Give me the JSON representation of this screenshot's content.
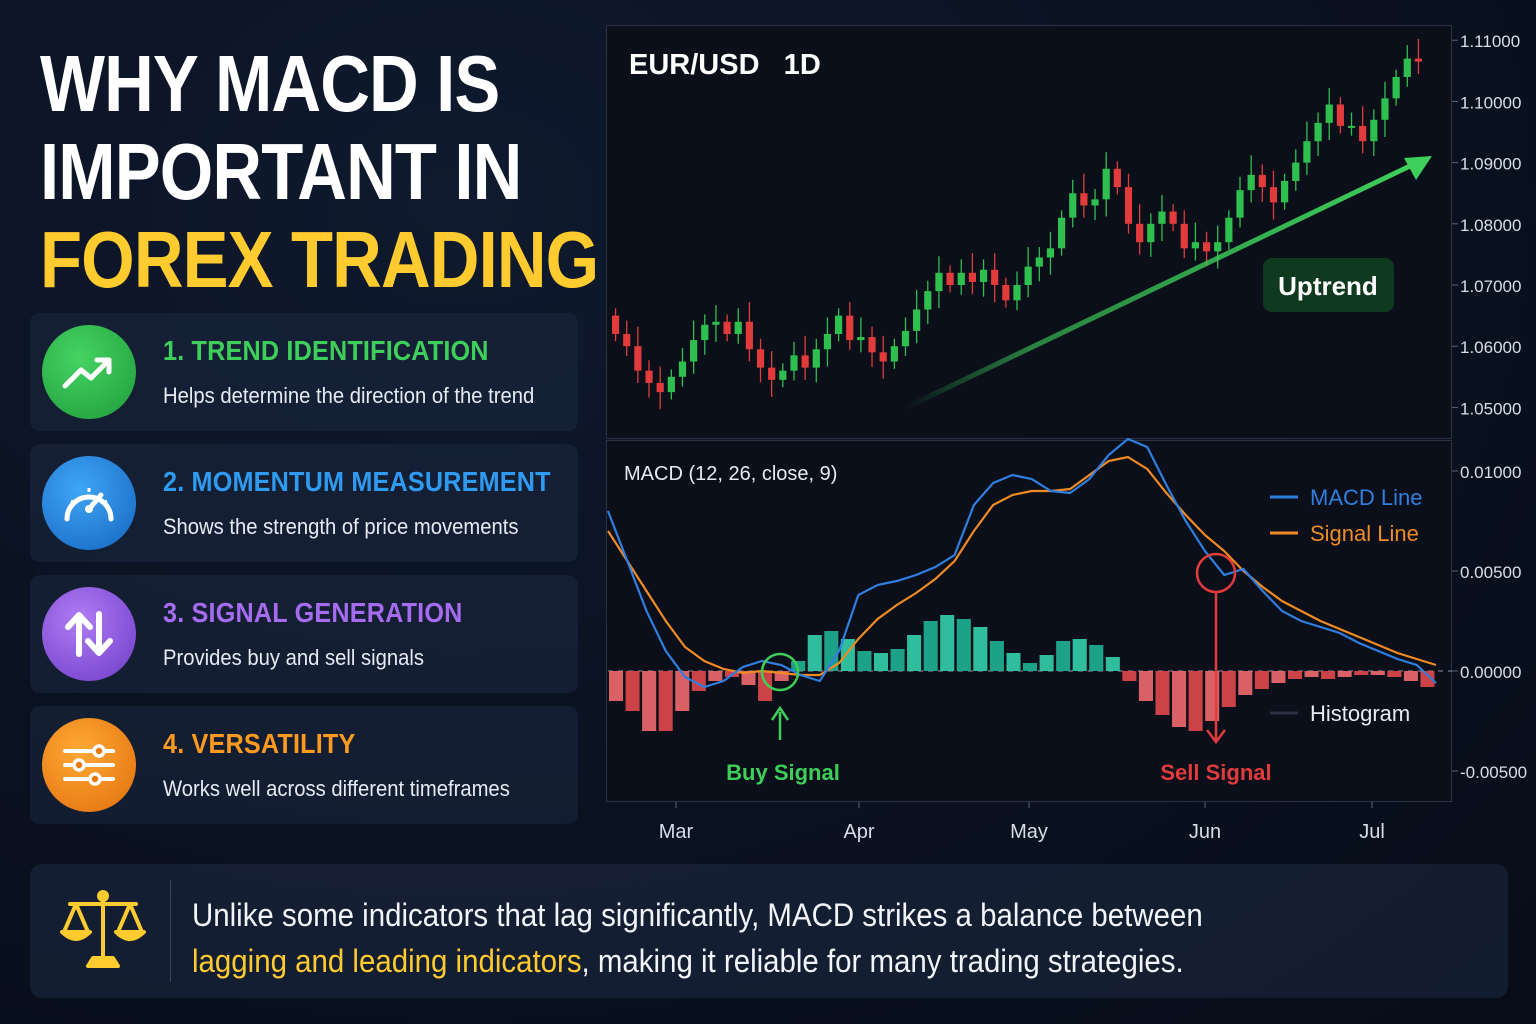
{
  "title": {
    "line1": "WHY MACD IS",
    "line2": "IMPORTANT IN",
    "line3": "FOREX TRADING"
  },
  "features": [
    {
      "title": "1. TREND IDENTIFICATION",
      "desc": "Helps determine the direction of the trend",
      "color": "#3ecf5a",
      "icon": "trending-up-icon"
    },
    {
      "title": "2. MOMENTUM MEASUREMENT",
      "desc": "Shows the strength of price movements",
      "color": "#2f9bf0",
      "icon": "speedometer-icon"
    },
    {
      "title": "3. SIGNAL GENERATION",
      "desc": "Provides buy and sell signals",
      "color": "#a56cf0",
      "icon": "up-down-arrows-icon"
    },
    {
      "title": "4. VERSATILITY",
      "desc": "Works well across different timeframes",
      "color": "#ff9a1f",
      "icon": "sliders-icon"
    }
  ],
  "footer": {
    "text_line1": "Unlike some indicators that lag significantly, MACD strikes a balance between",
    "text_highlight": "lagging and leading indicators",
    "text_line2_rest": ", making it reliable for many trading strategies.",
    "icon": "balance-scale-icon"
  },
  "chart_data": [
    {
      "type": "candlestick",
      "title": "EUR/USD   1D",
      "ylim": [
        1.045,
        1.112
      ],
      "y_ticks": [
        "1.11000",
        "1.10000",
        "1.09000",
        "1.08000",
        "1.07000",
        "1.06000",
        "1.05000"
      ],
      "y_tick_values": [
        1.11,
        1.1,
        1.09,
        1.08,
        1.07,
        1.06,
        1.05
      ],
      "annotation": "Uptrend",
      "colors": {
        "up": "#2fbf4f",
        "down": "#e23b3b",
        "arrow": "#3ecf5a"
      },
      "closes": [
        1.062,
        1.06,
        1.056,
        1.054,
        1.0525,
        1.055,
        1.0575,
        1.061,
        1.0635,
        1.064,
        1.062,
        1.064,
        1.0595,
        1.0565,
        1.0545,
        1.056,
        1.0585,
        1.0565,
        1.0595,
        1.062,
        1.065,
        1.061,
        1.0615,
        1.059,
        1.0575,
        1.06,
        1.0625,
        1.066,
        1.069,
        1.072,
        1.07,
        1.072,
        1.0705,
        1.0725,
        1.07,
        1.0675,
        1.07,
        1.073,
        1.0745,
        1.076,
        1.081,
        1.085,
        1.083,
        1.084,
        1.089,
        1.086,
        1.08,
        1.077,
        1.08,
        1.082,
        1.08,
        1.076,
        1.077,
        1.0755,
        1.077,
        1.081,
        1.0855,
        1.088,
        1.086,
        1.0835,
        1.087,
        1.09,
        1.0935,
        1.0965,
        1.0995,
        1.096,
        1.096,
        1.0935,
        1.097,
        1.1005,
        1.104,
        1.107,
        1.1065
      ]
    },
    {
      "type": "macd",
      "title": "MACD (12, 26, close, 9)",
      "ylim": [
        -0.0065,
        0.0115
      ],
      "y_ticks": [
        "0.01000",
        "0.00500",
        "0.00000",
        "-0.00500"
      ],
      "y_tick_values": [
        0.01,
        0.005,
        0,
        -0.005
      ],
      "x_ticks": [
        "Mar",
        "Apr",
        "May",
        "Jun",
        "Jul"
      ],
      "legend": [
        {
          "name": "MACD Line",
          "color": "#2f7fe0"
        },
        {
          "name": "Signal Line",
          "color": "#f08a24"
        },
        {
          "name": "Histogram",
          "color": "#9aa4b2"
        }
      ],
      "legend_position": "top-right",
      "annotations": [
        {
          "text": "Buy Signal",
          "color": "#3ecf5a"
        },
        {
          "text": "Sell Signal",
          "color": "#e23b3b"
        }
      ],
      "macd_line": [
        0.008,
        0.0055,
        0.003,
        0.001,
        -0.0003,
        -0.0008,
        -0.0005,
        0.0002,
        0.0005,
        0.0003,
        -0.0002,
        -0.0005,
        0.001,
        0.0038,
        0.0043,
        0.0045,
        0.0048,
        0.0052,
        0.0058,
        0.0083,
        0.0094,
        0.0098,
        0.0096,
        0.009,
        0.0089,
        0.0096,
        0.0108,
        0.0116,
        0.0112,
        0.0093,
        0.0075,
        0.006,
        0.0048,
        0.0051,
        0.004,
        0.003,
        0.0025,
        0.0022,
        0.0019,
        0.0014,
        0.001,
        0.0006,
        0.0003,
        -0.0006
      ],
      "signal_line": [
        0.007,
        0.0055,
        0.004,
        0.0025,
        0.0012,
        0.0005,
        0.0001,
        -0.0001,
        0.0,
        -0.0001,
        -0.0002,
        -0.0002,
        0.0004,
        0.0016,
        0.0026,
        0.0033,
        0.0039,
        0.0046,
        0.0055,
        0.007,
        0.0083,
        0.0088,
        0.009,
        0.009,
        0.0091,
        0.0098,
        0.0105,
        0.0107,
        0.0101,
        0.0089,
        0.0078,
        0.0068,
        0.006,
        0.005,
        0.0042,
        0.0035,
        0.003,
        0.0025,
        0.0021,
        0.0017,
        0.0013,
        0.0009,
        0.0006,
        0.0003
      ],
      "histogram": [
        -0.0015,
        -0.002,
        -0.003,
        -0.003,
        -0.002,
        -0.001,
        -0.0005,
        -0.0003,
        -0.0007,
        -0.0015,
        -0.0005,
        0.0005,
        0.0018,
        0.002,
        0.0016,
        0.001,
        0.0009,
        0.0011,
        0.0018,
        0.0025,
        0.0028,
        0.0026,
        0.0022,
        0.0015,
        0.0009,
        0.0004,
        0.0008,
        0.0015,
        0.0016,
        0.0013,
        0.0007,
        -0.0005,
        -0.0015,
        -0.0022,
        -0.0028,
        -0.003,
        -0.0025,
        -0.0018,
        -0.0012,
        -0.0009,
        -0.0006,
        -0.0004,
        -0.0003,
        -0.0004,
        -0.0003,
        -0.0002,
        -0.0002,
        -0.0003,
        -0.0005,
        -0.0008
      ]
    }
  ]
}
